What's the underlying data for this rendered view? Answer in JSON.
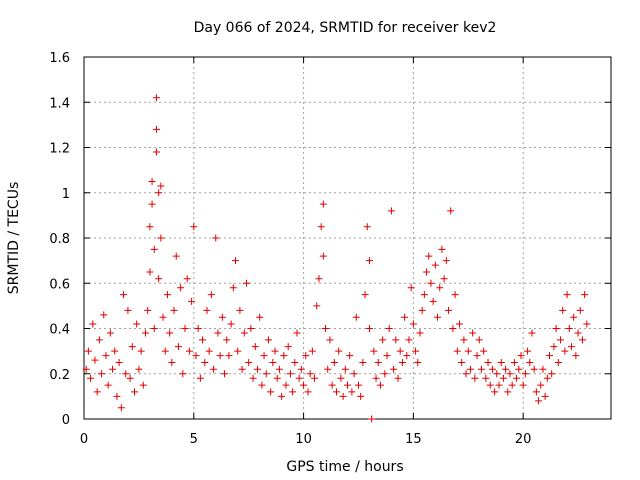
{
  "chart_data": {
    "type": "scatter",
    "title": "Day 066 of 2024, SRMTID for receiver kev2",
    "xlabel": "GPS time / hours",
    "ylabel": "SRMTID / TECUs",
    "xlim": [
      0,
      24
    ],
    "ylim": [
      0,
      1.6
    ],
    "x_ticks": [
      0,
      5,
      10,
      15,
      20
    ],
    "x_tick_labels": [
      "0",
      "5",
      "10",
      "15",
      "20"
    ],
    "y_ticks": [
      0,
      0.2,
      0.4,
      0.6,
      0.8,
      1.0,
      1.2,
      1.4,
      1.6
    ],
    "y_tick_labels": [
      "0",
      "0.2",
      "0.4",
      "0.6",
      "0.8",
      "1",
      "1.2",
      "1.4",
      "1.6"
    ],
    "grid": true,
    "series": [
      {
        "name": "SRMTID",
        "color": "#e00000",
        "marker": "plus",
        "points": [
          [
            0.1,
            0.22
          ],
          [
            0.2,
            0.3
          ],
          [
            0.3,
            0.18
          ],
          [
            0.4,
            0.42
          ],
          [
            0.5,
            0.26
          ],
          [
            0.6,
            0.12
          ],
          [
            0.7,
            0.35
          ],
          [
            0.8,
            0.2
          ],
          [
            0.9,
            0.46
          ],
          [
            1.0,
            0.28
          ],
          [
            1.1,
            0.15
          ],
          [
            1.2,
            0.38
          ],
          [
            1.3,
            0.22
          ],
          [
            1.4,
            0.3
          ],
          [
            1.5,
            0.1
          ],
          [
            1.6,
            0.25
          ],
          [
            1.7,
            0.05
          ],
          [
            1.8,
            0.55
          ],
          [
            1.9,
            0.2
          ],
          [
            2.0,
            0.48
          ],
          [
            2.1,
            0.18
          ],
          [
            2.2,
            0.32
          ],
          [
            2.3,
            0.12
          ],
          [
            2.4,
            0.42
          ],
          [
            2.5,
            0.22
          ],
          [
            2.6,
            0.3
          ],
          [
            2.7,
            0.15
          ],
          [
            2.8,
            0.38
          ],
          [
            2.9,
            0.48
          ],
          [
            3.0,
            0.65
          ],
          [
            3.0,
            0.85
          ],
          [
            3.1,
            0.95
          ],
          [
            3.1,
            1.05
          ],
          [
            3.2,
            0.4
          ],
          [
            3.2,
            0.75
          ],
          [
            3.3,
            1.42
          ],
          [
            3.3,
            1.28
          ],
          [
            3.3,
            1.18
          ],
          [
            3.4,
            0.62
          ],
          [
            3.4,
            1.0
          ],
          [
            3.5,
            1.03
          ],
          [
            3.5,
            0.8
          ],
          [
            3.6,
            0.45
          ],
          [
            3.7,
            0.3
          ],
          [
            3.8,
            0.55
          ],
          [
            3.9,
            0.38
          ],
          [
            4.0,
            0.25
          ],
          [
            4.1,
            0.48
          ],
          [
            4.2,
            0.72
          ],
          [
            4.3,
            0.32
          ],
          [
            4.4,
            0.58
          ],
          [
            4.5,
            0.2
          ],
          [
            4.6,
            0.4
          ],
          [
            4.7,
            0.62
          ],
          [
            4.8,
            0.3
          ],
          [
            4.9,
            0.52
          ],
          [
            5.0,
            0.85
          ],
          [
            5.1,
            0.28
          ],
          [
            5.2,
            0.4
          ],
          [
            5.3,
            0.18
          ],
          [
            5.4,
            0.35
          ],
          [
            5.5,
            0.25
          ],
          [
            5.6,
            0.48
          ],
          [
            5.7,
            0.3
          ],
          [
            5.8,
            0.55
          ],
          [
            5.9,
            0.22
          ],
          [
            6.0,
            0.8
          ],
          [
            6.1,
            0.38
          ],
          [
            6.2,
            0.28
          ],
          [
            6.3,
            0.45
          ],
          [
            6.4,
            0.2
          ],
          [
            6.5,
            0.35
          ],
          [
            6.6,
            0.28
          ],
          [
            6.7,
            0.42
          ],
          [
            6.8,
            0.58
          ],
          [
            6.9,
            0.7
          ],
          [
            7.0,
            0.3
          ],
          [
            7.1,
            0.48
          ],
          [
            7.2,
            0.22
          ],
          [
            7.3,
            0.38
          ],
          [
            7.4,
            0.6
          ],
          [
            7.5,
            0.25
          ],
          [
            7.6,
            0.4
          ],
          [
            7.7,
            0.18
          ],
          [
            7.8,
            0.32
          ],
          [
            7.9,
            0.22
          ],
          [
            8.0,
            0.45
          ],
          [
            8.1,
            0.15
          ],
          [
            8.2,
            0.28
          ],
          [
            8.3,
            0.2
          ],
          [
            8.4,
            0.35
          ],
          [
            8.5,
            0.12
          ],
          [
            8.6,
            0.25
          ],
          [
            8.7,
            0.3
          ],
          [
            8.8,
            0.18
          ],
          [
            8.9,
            0.22
          ],
          [
            9.0,
            0.1
          ],
          [
            9.1,
            0.28
          ],
          [
            9.2,
            0.15
          ],
          [
            9.3,
            0.32
          ],
          [
            9.4,
            0.2
          ],
          [
            9.5,
            0.12
          ],
          [
            9.6,
            0.25
          ],
          [
            9.7,
            0.38
          ],
          [
            9.8,
            0.18
          ],
          [
            9.9,
            0.22
          ],
          [
            10.0,
            0.15
          ],
          [
            10.1,
            0.28
          ],
          [
            10.2,
            0.12
          ],
          [
            10.3,
            0.2
          ],
          [
            10.4,
            0.3
          ],
          [
            10.5,
            0.18
          ],
          [
            10.6,
            0.5
          ],
          [
            10.7,
            0.62
          ],
          [
            10.8,
            0.85
          ],
          [
            10.9,
            0.95
          ],
          [
            10.9,
            0.72
          ],
          [
            11.0,
            0.4
          ],
          [
            11.1,
            0.22
          ],
          [
            11.2,
            0.35
          ],
          [
            11.3,
            0.15
          ],
          [
            11.4,
            0.25
          ],
          [
            11.5,
            0.12
          ],
          [
            11.6,
            0.3
          ],
          [
            11.7,
            0.18
          ],
          [
            11.8,
            0.1
          ],
          [
            11.9,
            0.22
          ],
          [
            12.0,
            0.15
          ],
          [
            12.1,
            0.28
          ],
          [
            12.2,
            0.12
          ],
          [
            12.3,
            0.2
          ],
          [
            12.4,
            0.45
          ],
          [
            12.5,
            0.15
          ],
          [
            12.6,
            0.1
          ],
          [
            12.7,
            0.25
          ],
          [
            12.8,
            0.55
          ],
          [
            12.9,
            0.85
          ],
          [
            13.0,
            0.7
          ],
          [
            13.0,
            0.4
          ],
          [
            13.1,
            0.0
          ],
          [
            13.2,
            0.3
          ],
          [
            13.3,
            0.18
          ],
          [
            13.4,
            0.25
          ],
          [
            13.5,
            0.15
          ],
          [
            13.6,
            0.35
          ],
          [
            13.7,
            0.2
          ],
          [
            13.8,
            0.28
          ],
          [
            13.9,
            0.4
          ],
          [
            14.0,
            0.92
          ],
          [
            14.1,
            0.22
          ],
          [
            14.2,
            0.35
          ],
          [
            14.3,
            0.18
          ],
          [
            14.4,
            0.3
          ],
          [
            14.5,
            0.25
          ],
          [
            14.6,
            0.45
          ],
          [
            14.7,
            0.28
          ],
          [
            14.8,
            0.35
          ],
          [
            14.9,
            0.58
          ],
          [
            15.0,
            0.42
          ],
          [
            15.1,
            0.3
          ],
          [
            15.2,
            0.25
          ],
          [
            15.3,
            0.38
          ],
          [
            15.4,
            0.48
          ],
          [
            15.5,
            0.55
          ],
          [
            15.6,
            0.65
          ],
          [
            15.7,
            0.72
          ],
          [
            15.8,
            0.6
          ],
          [
            15.9,
            0.52
          ],
          [
            16.0,
            0.68
          ],
          [
            16.1,
            0.45
          ],
          [
            16.2,
            0.58
          ],
          [
            16.3,
            0.75
          ],
          [
            16.4,
            0.62
          ],
          [
            16.5,
            0.7
          ],
          [
            16.6,
            0.48
          ],
          [
            16.7,
            0.92
          ],
          [
            16.8,
            0.4
          ],
          [
            16.9,
            0.55
          ],
          [
            17.0,
            0.3
          ],
          [
            17.1,
            0.42
          ],
          [
            17.2,
            0.25
          ],
          [
            17.3,
            0.35
          ],
          [
            17.4,
            0.2
          ],
          [
            17.5,
            0.3
          ],
          [
            17.6,
            0.22
          ],
          [
            17.7,
            0.38
          ],
          [
            17.8,
            0.18
          ],
          [
            17.9,
            0.28
          ],
          [
            18.0,
            0.35
          ],
          [
            18.1,
            0.22
          ],
          [
            18.2,
            0.3
          ],
          [
            18.3,
            0.18
          ],
          [
            18.4,
            0.25
          ],
          [
            18.5,
            0.15
          ],
          [
            18.6,
            0.22
          ],
          [
            18.7,
            0.12
          ],
          [
            18.8,
            0.2
          ],
          [
            18.9,
            0.15
          ],
          [
            19.0,
            0.25
          ],
          [
            19.1,
            0.18
          ],
          [
            19.2,
            0.22
          ],
          [
            19.3,
            0.12
          ],
          [
            19.4,
            0.2
          ],
          [
            19.5,
            0.15
          ],
          [
            19.6,
            0.25
          ],
          [
            19.7,
            0.18
          ],
          [
            19.8,
            0.22
          ],
          [
            19.9,
            0.28
          ],
          [
            20.0,
            0.15
          ],
          [
            20.1,
            0.2
          ],
          [
            20.2,
            0.3
          ],
          [
            20.3,
            0.25
          ],
          [
            20.4,
            0.38
          ],
          [
            20.5,
            0.22
          ],
          [
            20.6,
            0.12
          ],
          [
            20.7,
            0.08
          ],
          [
            20.8,
            0.15
          ],
          [
            20.9,
            0.22
          ],
          [
            21.0,
            0.1
          ],
          [
            21.1,
            0.18
          ],
          [
            21.2,
            0.28
          ],
          [
            21.3,
            0.2
          ],
          [
            21.4,
            0.32
          ],
          [
            21.5,
            0.4
          ],
          [
            21.6,
            0.25
          ],
          [
            21.7,
            0.35
          ],
          [
            21.8,
            0.48
          ],
          [
            21.9,
            0.3
          ],
          [
            22.0,
            0.55
          ],
          [
            22.1,
            0.4
          ],
          [
            22.2,
            0.32
          ],
          [
            22.3,
            0.45
          ],
          [
            22.4,
            0.28
          ],
          [
            22.5,
            0.38
          ],
          [
            22.6,
            0.48
          ],
          [
            22.7,
            0.35
          ],
          [
            22.8,
            0.55
          ],
          [
            22.9,
            0.42
          ]
        ]
      }
    ]
  }
}
